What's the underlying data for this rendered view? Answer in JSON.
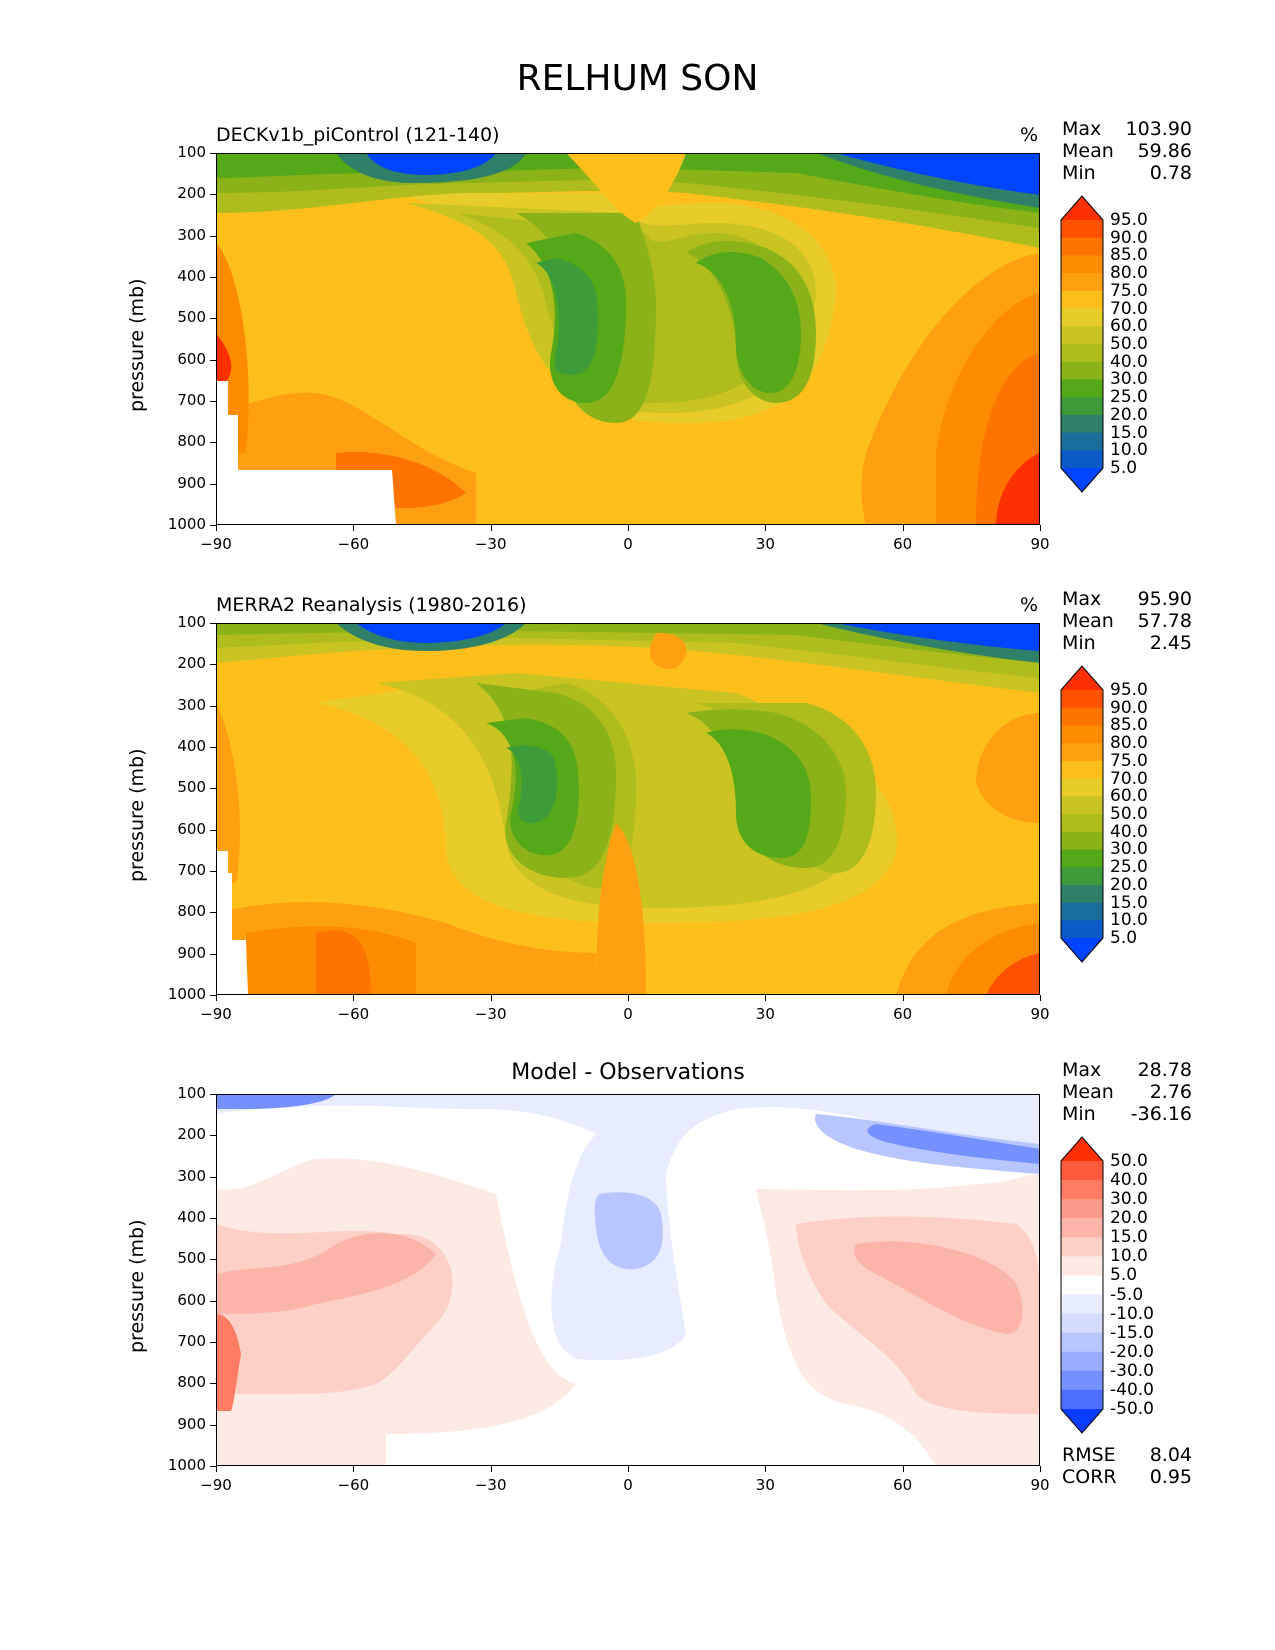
{
  "title": "RELHUM SON",
  "chart_data": [
    {
      "type": "heatmap",
      "title": "DECKv1b_piControl (121-140)",
      "units": "%",
      "stats": {
        "max_label": "Max",
        "max": "103.90",
        "mean_label": "Mean",
        "mean": "59.86",
        "min_label": "Min",
        "min": "0.78"
      },
      "ylabel": "pressure (mb)",
      "yticks": [
        "100",
        "200",
        "300",
        "400",
        "500",
        "600",
        "700",
        "800",
        "900",
        "1000"
      ],
      "xticks": [
        "−90",
        "−60",
        "−30",
        "0",
        "30",
        "60",
        "90"
      ],
      "ylim": [
        1000,
        100
      ],
      "xlim": [
        -90,
        90
      ],
      "levels": [
        "95.0",
        "90.0",
        "85.0",
        "80.0",
        "75.0",
        "70.0",
        "60.0",
        "50.0",
        "40.0",
        "30.0",
        "25.0",
        "20.0",
        "15.0",
        "10.0",
        "5.0"
      ],
      "colors": [
        "#ff3000",
        "#ff5200",
        "#ff7300",
        "#ff8c00",
        "#ffa010",
        "#ffbf1a",
        "#e8cc2a",
        "#c9c422",
        "#aebd1c",
        "#8cb21a",
        "#55a818",
        "#3c9c3a",
        "#2f8068",
        "#1a6f9a",
        "#0a5ac8",
        "#0044ff"
      ]
    },
    {
      "type": "heatmap",
      "title": "MERRA2 Reanalysis (1980-2016)",
      "units": "%",
      "stats": {
        "max_label": "Max",
        "max": "95.90",
        "mean_label": "Mean",
        "mean": "57.78",
        "min_label": "Min",
        "min": "2.45"
      },
      "ylabel": "pressure (mb)",
      "yticks": [
        "100",
        "200",
        "300",
        "400",
        "500",
        "600",
        "700",
        "800",
        "900",
        "1000"
      ],
      "xticks": [
        "−90",
        "−60",
        "−30",
        "0",
        "30",
        "60",
        "90"
      ],
      "ylim": [
        1000,
        100
      ],
      "xlim": [
        -90,
        90
      ],
      "levels": [
        "95.0",
        "90.0",
        "85.0",
        "80.0",
        "75.0",
        "70.0",
        "60.0",
        "50.0",
        "40.0",
        "30.0",
        "25.0",
        "20.0",
        "15.0",
        "10.0",
        "5.0"
      ],
      "colors": [
        "#ff3000",
        "#ff5200",
        "#ff7300",
        "#ff8c00",
        "#ffa010",
        "#ffbf1a",
        "#e8cc2a",
        "#c9c422",
        "#aebd1c",
        "#8cb21a",
        "#55a818",
        "#3c9c3a",
        "#2f8068",
        "#1a6f9a",
        "#0a5ac8",
        "#0044ff"
      ]
    },
    {
      "type": "heatmap",
      "title": "Model - Observations",
      "stats": {
        "max_label": "Max",
        "max": "28.78",
        "mean_label": "Mean",
        "mean": "2.76",
        "min_label": "Min",
        "min": "-36.16",
        "rmse_label": "RMSE",
        "rmse": "8.04",
        "corr_label": "CORR",
        "corr": "0.95"
      },
      "ylabel": "pressure (mb)",
      "yticks": [
        "100",
        "200",
        "300",
        "400",
        "500",
        "600",
        "700",
        "800",
        "900",
        "1000"
      ],
      "xticks": [
        "−90",
        "−60",
        "−30",
        "0",
        "30",
        "60",
        "90"
      ],
      "ylim": [
        1000,
        100
      ],
      "xlim": [
        -90,
        90
      ],
      "levels": [
        "50.0",
        "40.0",
        "30.0",
        "20.0",
        "15.0",
        "10.0",
        "5.0",
        "-5.0",
        "-10.0",
        "-15.0",
        "-20.0",
        "-30.0",
        "-40.0",
        "-50.0"
      ],
      "colors": [
        "#ff3000",
        "#ff5a3c",
        "#ff7b63",
        "#fb9a8a",
        "#fbb5a8",
        "#fdcfc5",
        "#feeae5",
        "#ffffff",
        "#e8ecff",
        "#d3dbff",
        "#b8c6ff",
        "#98adff",
        "#7590ff",
        "#4e6eff",
        "#0a3cff"
      ]
    }
  ]
}
